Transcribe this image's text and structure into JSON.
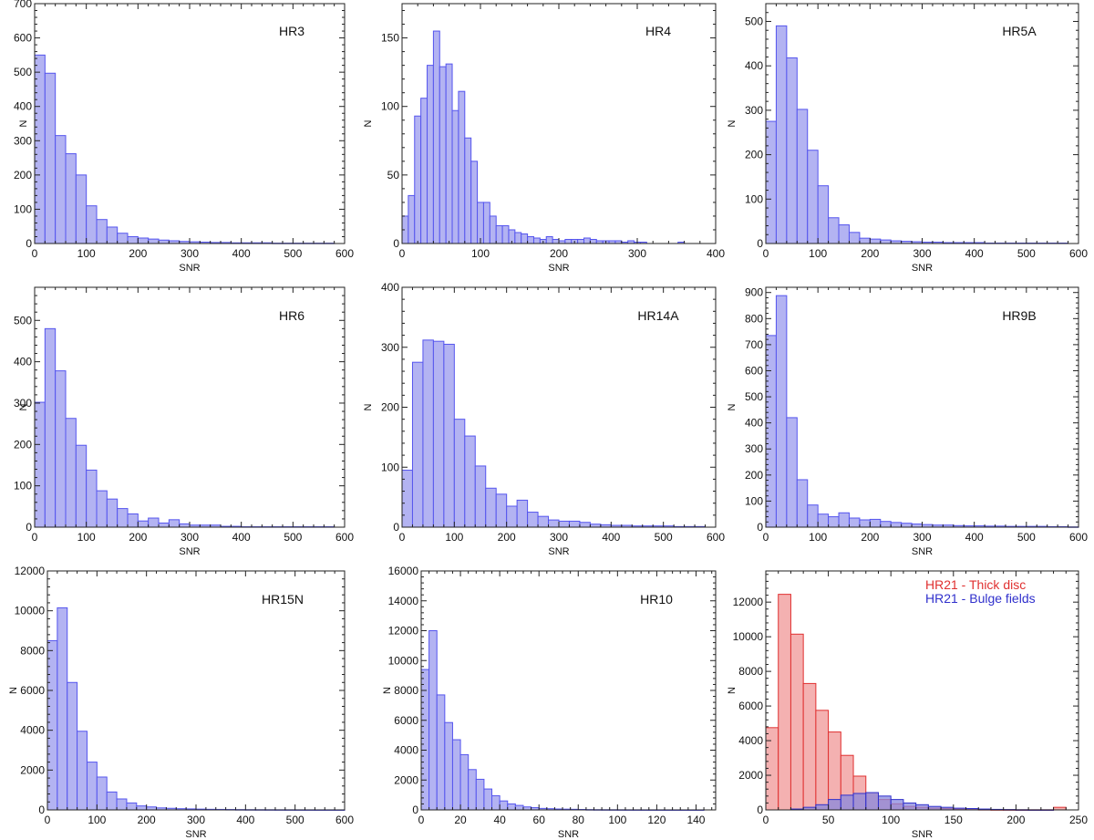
{
  "figure": {
    "grid": false,
    "legend_panel": "HR21"
  },
  "chart_data": [
    {
      "id": "HR3",
      "type": "bar",
      "title": "HR3",
      "xlabel": "SNR",
      "ylabel": "N",
      "xlim": [
        0,
        600
      ],
      "ylim": [
        0,
        700
      ],
      "xticks": [
        0,
        100,
        200,
        300,
        400,
        500,
        600
      ],
      "yticks": [
        0,
        100,
        200,
        300,
        400,
        500,
        600,
        700
      ],
      "series": [
        {
          "name": "HR3",
          "color": "#5555ee",
          "fill": "#b3b3f2",
          "bin_width": 20,
          "x_start": 0,
          "values": [
            550,
            497,
            315,
            262,
            200,
            110,
            70,
            48,
            30,
            20,
            16,
            13,
            10,
            8,
            6,
            5,
            4,
            3,
            3,
            2,
            2,
            2,
            2,
            1,
            1,
            1,
            1,
            1,
            1,
            0
          ]
        }
      ]
    },
    {
      "id": "HR4",
      "type": "bar",
      "title": "HR4",
      "xlabel": "SNR",
      "ylabel": "N",
      "xlim": [
        0,
        400
      ],
      "ylim": [
        0,
        175
      ],
      "xticks": [
        0,
        100,
        200,
        300,
        400
      ],
      "yticks": [
        0,
        50,
        100,
        150
      ],
      "series": [
        {
          "name": "HR4",
          "color": "#5555ee",
          "fill": "#b3b3f2",
          "bin_width": 8,
          "x_start": 0,
          "values": [
            20,
            35,
            93,
            106,
            130,
            155,
            129,
            131,
            97,
            111,
            77,
            60,
            30,
            30,
            20,
            13,
            13,
            10,
            8,
            7,
            5,
            4,
            3,
            5,
            3,
            2,
            3,
            3,
            3,
            4,
            3,
            2,
            2,
            2,
            2,
            1,
            2,
            1,
            1,
            0,
            0,
            0,
            0,
            0,
            1,
            0,
            0,
            0,
            0,
            0
          ]
        }
      ]
    },
    {
      "id": "HR5A",
      "type": "bar",
      "title": "HR5A",
      "xlabel": "SNR",
      "ylabel": "N",
      "xlim": [
        0,
        600
      ],
      "ylim": [
        0,
        540
      ],
      "xticks": [
        0,
        100,
        200,
        300,
        400,
        500,
        600
      ],
      "yticks": [
        0,
        100,
        200,
        300,
        400,
        500
      ],
      "series": [
        {
          "name": "HR5A",
          "color": "#5555ee",
          "fill": "#b3b3f2",
          "bin_width": 20,
          "x_start": 0,
          "values": [
            275,
            490,
            418,
            302,
            210,
            130,
            58,
            42,
            25,
            12,
            10,
            8,
            6,
            5,
            4,
            3,
            3,
            2,
            2,
            2,
            2,
            1,
            1,
            1,
            1,
            1,
            1,
            1,
            1,
            0
          ]
        }
      ]
    },
    {
      "id": "HR6",
      "type": "bar",
      "title": "HR6",
      "xlabel": "SNR",
      "ylabel": "N",
      "xlim": [
        0,
        600
      ],
      "ylim": [
        0,
        580
      ],
      "xticks": [
        0,
        100,
        200,
        300,
        400,
        500,
        600
      ],
      "yticks": [
        0,
        100,
        200,
        300,
        400,
        500
      ],
      "series": [
        {
          "name": "HR6",
          "color": "#5555ee",
          "fill": "#b3b3f2",
          "bin_width": 20,
          "x_start": 0,
          "values": [
            302,
            480,
            378,
            263,
            198,
            138,
            88,
            68,
            45,
            32,
            15,
            22,
            10,
            18,
            8,
            5,
            5,
            5,
            2,
            2,
            1,
            1,
            1,
            1,
            1,
            1,
            1,
            1,
            1,
            0
          ]
        }
      ]
    },
    {
      "id": "HR14A",
      "type": "bar",
      "title": "HR14A",
      "xlabel": "SNR",
      "ylabel": "N",
      "xlim": [
        0,
        600
      ],
      "ylim": [
        0,
        400
      ],
      "xticks": [
        0,
        100,
        200,
        300,
        400,
        500,
        600
      ],
      "yticks": [
        0,
        100,
        200,
        300,
        400
      ],
      "series": [
        {
          "name": "HR14A",
          "color": "#5555ee",
          "fill": "#b3b3f2",
          "bin_width": 20,
          "x_start": 0,
          "values": [
            95,
            275,
            312,
            310,
            305,
            180,
            152,
            102,
            65,
            55,
            35,
            45,
            25,
            18,
            12,
            10,
            10,
            8,
            5,
            4,
            3,
            3,
            2,
            2,
            2,
            2,
            1,
            1,
            1,
            0
          ]
        }
      ]
    },
    {
      "id": "HR9B",
      "type": "bar",
      "title": "HR9B",
      "xlabel": "SNR",
      "ylabel": "N",
      "xlim": [
        0,
        600
      ],
      "ylim": [
        0,
        920
      ],
      "xticks": [
        0,
        100,
        200,
        300,
        400,
        500,
        600
      ],
      "yticks": [
        0,
        100,
        200,
        300,
        400,
        500,
        600,
        700,
        800,
        900
      ],
      "series": [
        {
          "name": "HR9B",
          "color": "#5555ee",
          "fill": "#b3b3f2",
          "bin_width": 20,
          "x_start": 0,
          "values": [
            735,
            888,
            420,
            182,
            85,
            50,
            40,
            55,
            35,
            28,
            30,
            22,
            18,
            15,
            12,
            10,
            8,
            8,
            6,
            5,
            5,
            4,
            4,
            3,
            3,
            3,
            3,
            2,
            2,
            1
          ]
        }
      ]
    },
    {
      "id": "HR15N",
      "type": "bar",
      "title": "HR15N",
      "xlabel": "SNR",
      "ylabel": "N",
      "xlim": [
        0,
        600
      ],
      "ylim": [
        0,
        12000
      ],
      "xticks": [
        0,
        100,
        200,
        300,
        400,
        500,
        600
      ],
      "yticks": [
        0,
        2000,
        4000,
        6000,
        8000,
        10000,
        12000
      ],
      "series": [
        {
          "name": "HR15N",
          "color": "#5555ee",
          "fill": "#b3b3f2",
          "bin_width": 20,
          "x_start": 0,
          "values": [
            8500,
            10150,
            6400,
            3950,
            2400,
            1650,
            900,
            550,
            350,
            200,
            150,
            100,
            80,
            60,
            50,
            40,
            30,
            25,
            20,
            15,
            12,
            10,
            8,
            6,
            5,
            4,
            3,
            2,
            2,
            1
          ]
        }
      ]
    },
    {
      "id": "HR10",
      "type": "bar",
      "title": "HR10",
      "xlabel": "SNR",
      "ylabel": "N",
      "xlim": [
        0,
        150
      ],
      "ylim": [
        0,
        16000
      ],
      "xticks": [
        0,
        20,
        40,
        60,
        80,
        100,
        120,
        140
      ],
      "yticks": [
        0,
        2000,
        4000,
        6000,
        8000,
        10000,
        12000,
        14000,
        16000
      ],
      "series": [
        {
          "name": "HR10",
          "color": "#5555ee",
          "fill": "#b3b3f2",
          "bin_width": 4,
          "x_start": 0,
          "values": [
            9400,
            12000,
            7700,
            5850,
            4700,
            3700,
            2700,
            2050,
            1400,
            950,
            600,
            400,
            300,
            200,
            150,
            100,
            80,
            60,
            50,
            40,
            30,
            20,
            15,
            12,
            10,
            8,
            6,
            5,
            4,
            3,
            3,
            2,
            2,
            1,
            1,
            1,
            0
          ]
        }
      ]
    },
    {
      "id": "HR21",
      "type": "bar",
      "title": "",
      "xlabel": "SNR",
      "ylabel": "N",
      "xlim": [
        0,
        250
      ],
      "ylim": [
        0,
        13800
      ],
      "xticks": [
        0,
        50,
        100,
        150,
        200,
        250
      ],
      "yticks": [
        0,
        2000,
        4000,
        6000,
        8000,
        10000,
        12000
      ],
      "series": [
        {
          "name": "HR21 - Thick disc",
          "color": "#e03030",
          "fill": "#f4b1b1",
          "bin_width": 10,
          "x_start": 0,
          "values": [
            4750,
            12450,
            10150,
            7300,
            5750,
            4500,
            3150,
            1950,
            1000,
            600,
            350,
            200,
            150,
            100,
            80,
            50,
            30,
            20,
            10,
            10,
            5,
            5,
            5,
            150
          ]
        },
        {
          "name": "HR21 - Bulge fields",
          "color": "#3030cc",
          "fill": "#8888dd",
          "bin_width": 10,
          "x_start": 0,
          "values": [
            0,
            0,
            50,
            150,
            300,
            600,
            850,
            950,
            1000,
            800,
            600,
            400,
            300,
            200,
            150,
            100,
            80,
            50,
            30,
            20,
            10,
            5,
            5,
            0
          ]
        }
      ]
    }
  ]
}
